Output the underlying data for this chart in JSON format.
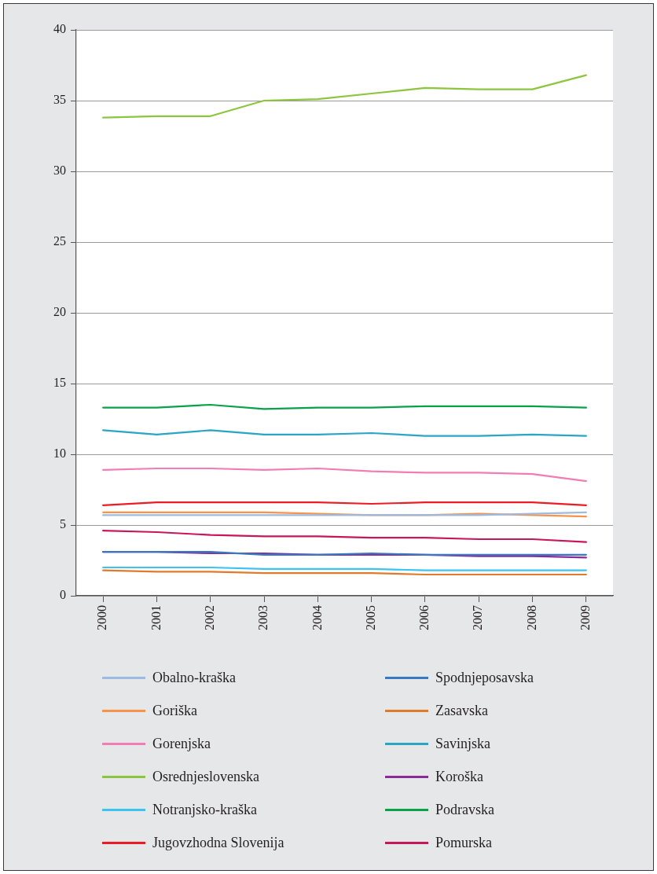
{
  "chart_data": {
    "type": "line",
    "categories": [
      "2000",
      "2001",
      "2002",
      "2003",
      "2004",
      "2005",
      "2006",
      "2007",
      "2008",
      "2009"
    ],
    "ylim": [
      0,
      40
    ],
    "yticks": [
      0,
      5,
      10,
      15,
      20,
      25,
      30,
      35,
      40
    ],
    "grid": "y",
    "legend": "bottom",
    "series": [
      {
        "name": "Obalno-kraška",
        "color": "#9dbae2",
        "values": [
          5.7,
          5.7,
          5.7,
          5.7,
          5.7,
          5.7,
          5.7,
          5.7,
          5.8,
          5.9
        ]
      },
      {
        "name": "Goriška",
        "color": "#f7944a",
        "values": [
          5.9,
          5.9,
          5.9,
          5.9,
          5.8,
          5.7,
          5.7,
          5.8,
          5.7,
          5.6
        ]
      },
      {
        "name": "Gorenjska",
        "color": "#f27db4",
        "values": [
          8.9,
          9.0,
          9.0,
          8.9,
          9.0,
          8.8,
          8.7,
          8.7,
          8.6,
          8.1
        ]
      },
      {
        "name": "Osrednjeslovenska",
        "color": "#8cc63f",
        "values": [
          33.8,
          33.9,
          33.9,
          35.0,
          35.1,
          35.5,
          35.9,
          35.8,
          35.8,
          36.8
        ]
      },
      {
        "name": "Notranjsko-kraška",
        "color": "#3cc3f0",
        "values": [
          2.0,
          2.0,
          2.0,
          1.9,
          1.9,
          1.9,
          1.8,
          1.8,
          1.8,
          1.8
        ]
      },
      {
        "name": "Jugovzhodna Slovenija",
        "color": "#ed1c24",
        "values": [
          6.4,
          6.6,
          6.6,
          6.6,
          6.6,
          6.5,
          6.6,
          6.6,
          6.6,
          6.4
        ]
      },
      {
        "name": "Spodnjeposavska",
        "color": "#3a78c1",
        "values": [
          3.1,
          3.1,
          3.1,
          2.9,
          2.9,
          3.0,
          2.9,
          2.9,
          2.9,
          2.9
        ]
      },
      {
        "name": "Zasavska",
        "color": "#e07b2c",
        "values": [
          1.8,
          1.7,
          1.7,
          1.6,
          1.6,
          1.6,
          1.5,
          1.5,
          1.5,
          1.5
        ]
      },
      {
        "name": "Savinjska",
        "color": "#2aa5c5",
        "values": [
          11.7,
          11.4,
          11.7,
          11.4,
          11.4,
          11.5,
          11.3,
          11.3,
          11.4,
          11.3
        ]
      },
      {
        "name": "Koroška",
        "color": "#8b2a99",
        "values": [
          3.1,
          3.1,
          3.0,
          3.0,
          2.9,
          2.9,
          2.9,
          2.8,
          2.8,
          2.7
        ]
      },
      {
        "name": "Podravska",
        "color": "#0aa14b",
        "values": [
          13.3,
          13.3,
          13.5,
          13.2,
          13.3,
          13.3,
          13.4,
          13.4,
          13.4,
          13.3
        ]
      },
      {
        "name": "Pomurska",
        "color": "#c7175c",
        "values": [
          4.6,
          4.5,
          4.3,
          4.2,
          4.2,
          4.1,
          4.1,
          4.0,
          4.0,
          3.8
        ]
      }
    ]
  }
}
